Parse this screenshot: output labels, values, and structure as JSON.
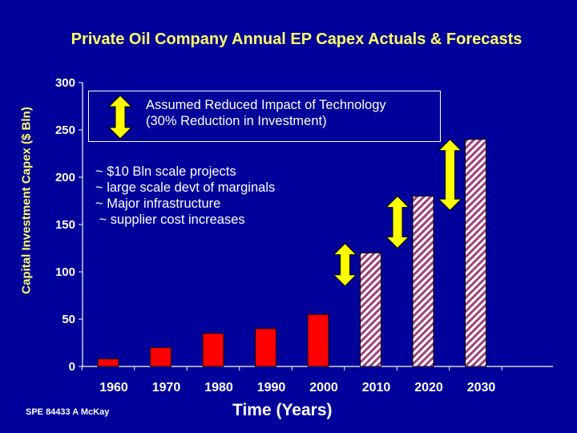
{
  "chart_data": {
    "type": "bar",
    "title": "Private Oil Company Annual EP Capex Actuals & Forecasts",
    "ylabel": "Capital Investment Capex ($ Bln)",
    "xlabel": "Time (Years)",
    "ylim": [
      0,
      300
    ],
    "yticks": [
      0,
      50,
      100,
      150,
      200,
      250,
      300
    ],
    "grid": false,
    "categories": [
      "1960",
      "1970",
      "1980",
      "1990",
      "2000",
      "2010",
      "2020",
      "2030"
    ],
    "series": [
      {
        "values": [
          8,
          20,
          35,
          40,
          55,
          null,
          null,
          null
        ],
        "color": "#ff0000"
      },
      {
        "values": [
          null,
          null,
          null,
          null,
          null,
          120,
          180,
          240
        ],
        "color": "#ffffff",
        "pattern": "hatched"
      }
    ],
    "ranges": [
      {
        "category": "2010",
        "low": 85,
        "high": 130,
        "color": "#ffff00"
      },
      {
        "category": "2020",
        "low": 125,
        "high": 180,
        "color": "#ffff00"
      },
      {
        "category": "2030",
        "low": 165,
        "high": 240,
        "color": "#ffff00"
      }
    ],
    "annotations": {
      "box_text_1": "Assumed Reduced Impact of Technology",
      "box_text_2": "(30% Reduction in Investment)",
      "box_arrow_color": "#ffff00",
      "list": [
        "~ $10 Bln scale projects",
        "~ large scale devt of marginals",
        "~ Major infrastructure",
        " ~ supplier cost increases"
      ]
    }
  },
  "footer": {
    "credit": "SPE 84433  A McKay"
  }
}
